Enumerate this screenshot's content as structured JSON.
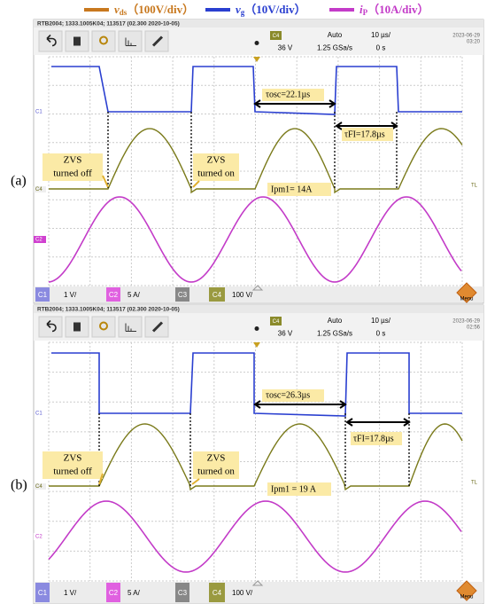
{
  "legend": [
    {
      "symbol": "v",
      "sub": "ds",
      "scale": "（100V/div）",
      "color": "#c8781e"
    },
    {
      "symbol": "v",
      "sub": "g",
      "scale": "（10V/div）",
      "color": "#2a3fd0"
    },
    {
      "symbol": "i",
      "sub": "P",
      "scale": "（10A/div）",
      "color": "#c33bc8"
    }
  ],
  "panels": [
    {
      "label": "(a)",
      "header": "RTB2004; 1333.1005K04; 113517 (02.300 2020-10-05)",
      "toolbar": {
        "channel": "C4",
        "level": "36 V",
        "mode": "Auto",
        "rate": "1.25 GSa/s",
        "timebase": "10 µs/",
        "offset": "0 s",
        "date": "2023-06-29",
        "time": "03:20"
      },
      "markers": {
        "c1": "C1",
        "c4": "C4",
        "c2": "C2",
        "tl": "TL"
      },
      "annotations": {
        "zvs_off": [
          "ZVS",
          "turned off"
        ],
        "zvs_on": [
          "ZVS",
          "turned on"
        ],
        "tau_osc": "τosc=22.1µs",
        "tau_fi": "τFI=17.8µs",
        "ipm": "Ipm1= 14A"
      },
      "bottom": {
        "c1": "C1",
        "c1_scale": "1 V/",
        "c2": "C2",
        "c2_scale": "5 A/",
        "c3": "C3",
        "c4": "C4",
        "c4_scale": "100 V/",
        "menu": "Menu"
      }
    },
    {
      "label": "(b)",
      "header": "RTB2004; 1333.1005K04; 113517 (02.300 2020-10-05)",
      "toolbar": {
        "channel": "C4",
        "level": "36 V",
        "mode": "Auto",
        "rate": "1.25 GSa/s",
        "timebase": "10 µs/",
        "offset": "0 s",
        "date": "2023-06-29",
        "time": "02:56"
      },
      "markers": {
        "c1": "C1",
        "c4": "C4",
        "c2": "C2",
        "tl": "TL"
      },
      "annotations": {
        "zvs_off": [
          "ZVS",
          "turned off"
        ],
        "zvs_on": [
          "ZVS",
          "turned on"
        ],
        "tau_osc": "τosc=26.3µs",
        "tau_fi": "τFI=17.8µs",
        "ipm": "Ipm1 = 19 A"
      },
      "bottom": {
        "c1": "C1",
        "c1_scale": "1 V/",
        "c2": "C2",
        "c2_scale": "5 A/",
        "c3": "C3",
        "c4": "C4",
        "c4_scale": "100 V/",
        "menu": "Menu"
      }
    }
  ]
}
